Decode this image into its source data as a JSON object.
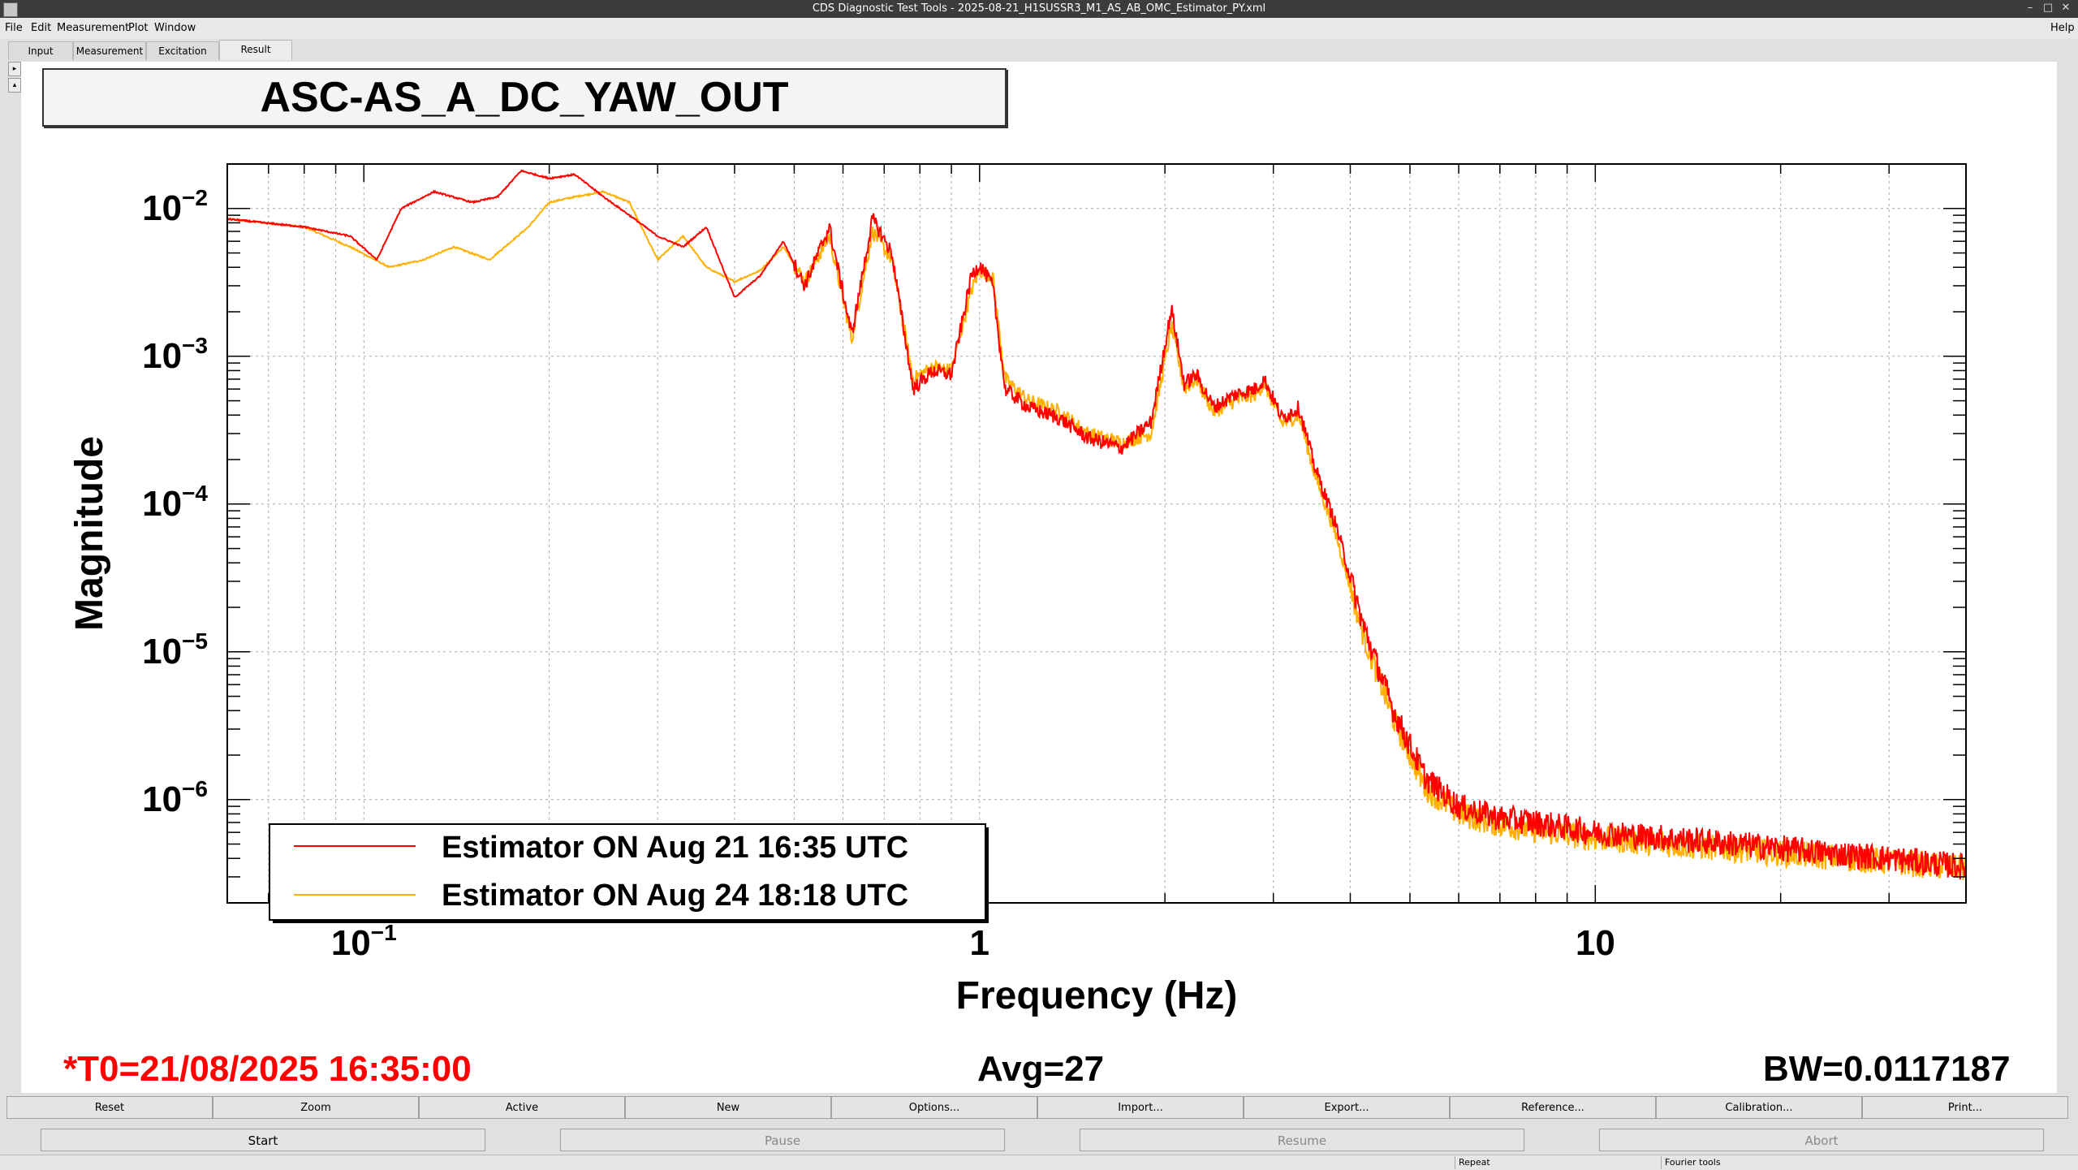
{
  "window": {
    "title": "CDS Diagnostic Test Tools - 2025-08-21_H1SUSSR3_M1_AS_AB_OMC_Estimator_PY.xml",
    "help_label": "Help"
  },
  "menu": {
    "items": [
      "File",
      "Edit",
      "Measurement",
      "Plot",
      "Window"
    ]
  },
  "tabs": [
    "Input",
    "Measurement",
    "Excitation",
    "Result"
  ],
  "active_tab": "Result",
  "plot": {
    "title": "ASC-AS_A_DC_YAW_OUT",
    "status_left": "*T0=21/08/2025 16:35:00",
    "status_mid": "Avg=27",
    "status_right": "BW=0.0117187",
    "status_left_color": "#ff0000"
  },
  "chart_data": {
    "type": "line",
    "title": "ASC-AS_A_DC_YAW_OUT",
    "xlabel": "Frequency (Hz)",
    "ylabel": "Magnitude",
    "xscale": "log",
    "yscale": "log",
    "xlim": [
      0.06,
      40
    ],
    "ylim": [
      2e-07,
      0.02
    ],
    "grid": true,
    "legend_position": "bottom-left",
    "x_tick_labels": [
      {
        "value": 0.1,
        "base": "10",
        "exp": "−1"
      },
      {
        "value": 1,
        "base": "1",
        "exp": ""
      },
      {
        "value": 10,
        "base": "10",
        "exp": ""
      }
    ],
    "y_tick_labels": [
      {
        "value": 0.01,
        "base": "10",
        "exp": "−2"
      },
      {
        "value": 0.001,
        "base": "10",
        "exp": "−3"
      },
      {
        "value": 0.0001,
        "base": "10",
        "exp": "−4"
      },
      {
        "value": 1e-05,
        "base": "10",
        "exp": "−5"
      },
      {
        "value": 1e-06,
        "base": "10",
        "exp": "−6"
      }
    ],
    "series": [
      {
        "name": "Estimator ON Aug 21 16:35 UTC",
        "color": "#ff0000",
        "x": [
          0.06,
          0.08,
          0.095,
          0.105,
          0.115,
          0.13,
          0.15,
          0.165,
          0.18,
          0.2,
          0.22,
          0.245,
          0.27,
          0.3,
          0.33,
          0.36,
          0.4,
          0.44,
          0.48,
          0.52,
          0.57,
          0.62,
          0.67,
          0.72,
          0.78,
          0.84,
          0.9,
          0.97,
          1.0,
          1.05,
          1.1,
          1.2,
          1.35,
          1.5,
          1.7,
          1.9,
          2.05,
          2.15,
          2.25,
          2.4,
          2.6,
          2.8,
          2.9,
          3.1,
          3.3,
          3.5,
          3.8,
          4.2,
          4.7,
          5.3,
          6.0,
          7.0,
          8.0,
          10.0,
          13.0,
          17.0,
          22.0,
          30.0,
          40.0
        ],
        "y": [
          0.0085,
          0.0075,
          0.0065,
          0.0045,
          0.01,
          0.013,
          0.011,
          0.012,
          0.018,
          0.016,
          0.017,
          0.012,
          0.009,
          0.0065,
          0.0055,
          0.0075,
          0.0025,
          0.0035,
          0.006,
          0.003,
          0.0075,
          0.0014,
          0.0085,
          0.005,
          0.0006,
          0.0008,
          0.00075,
          0.0035,
          0.0042,
          0.003,
          0.0006,
          0.00045,
          0.00038,
          0.00028,
          0.00024,
          0.00036,
          0.0021,
          0.00065,
          0.00075,
          0.00045,
          0.00055,
          0.0006,
          0.0007,
          0.00038,
          0.00045,
          0.00018,
          7e-05,
          1.5e-05,
          4e-06,
          1.4e-06,
          9e-07,
          7.5e-07,
          7e-07,
          6e-07,
          5.5e-07,
          5e-07,
          4.5e-07,
          4e-07,
          3.5e-07
        ]
      },
      {
        "name": "Estimator ON Aug 24 18:18 UTC",
        "color": "#ffb000",
        "x": [
          0.06,
          0.08,
          0.095,
          0.11,
          0.125,
          0.14,
          0.16,
          0.185,
          0.2,
          0.22,
          0.245,
          0.27,
          0.3,
          0.33,
          0.36,
          0.4,
          0.44,
          0.48,
          0.52,
          0.57,
          0.62,
          0.67,
          0.72,
          0.78,
          0.84,
          0.9,
          0.97,
          1.0,
          1.05,
          1.1,
          1.2,
          1.35,
          1.5,
          1.7,
          1.9,
          2.05,
          2.15,
          2.25,
          2.4,
          2.6,
          2.8,
          2.9,
          3.1,
          3.3,
          3.5,
          3.8,
          4.2,
          4.7,
          5.3,
          6.0,
          7.0,
          8.0,
          10.0,
          13.0,
          17.0,
          22.0,
          30.0,
          40.0
        ],
        "y": [
          0.0085,
          0.0075,
          0.0055,
          0.004,
          0.0045,
          0.0055,
          0.0045,
          0.0075,
          0.011,
          0.012,
          0.013,
          0.011,
          0.0045,
          0.0065,
          0.004,
          0.0032,
          0.0038,
          0.0055,
          0.0032,
          0.0065,
          0.0013,
          0.007,
          0.0045,
          0.0007,
          0.00085,
          0.0008,
          0.0028,
          0.0038,
          0.0035,
          0.0007,
          0.0005,
          0.00042,
          0.0003,
          0.00026,
          0.0003,
          0.0016,
          0.0006,
          0.0007,
          0.00042,
          0.0005,
          0.00055,
          0.00065,
          0.00035,
          0.0004,
          0.00016,
          6e-05,
          1.3e-05,
          3.5e-06,
          1.2e-06,
          8e-07,
          6.8e-07,
          6.2e-07,
          5.5e-07,
          5e-07,
          4.6e-07,
          4.2e-07,
          3.8e-07,
          3.4e-07
        ]
      }
    ]
  },
  "buttons": [
    "Reset",
    "Zoom",
    "Active",
    "New",
    "Options...",
    "Import...",
    "Export...",
    "Reference...",
    "Calibration...",
    "Print..."
  ],
  "controls": [
    {
      "label": "Start",
      "enabled": true
    },
    {
      "label": "Pause",
      "enabled": false
    },
    {
      "label": "Resume",
      "enabled": false
    },
    {
      "label": "Abort",
      "enabled": false
    }
  ],
  "statusbar": {
    "repeat_label": "Repeat",
    "fourier_label": "Fourier tools"
  }
}
